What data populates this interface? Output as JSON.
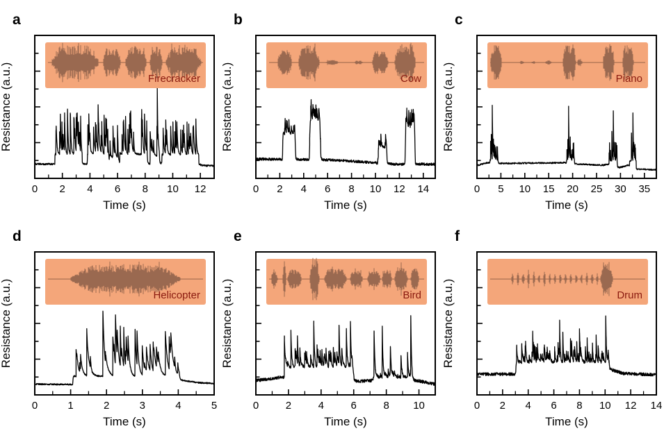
{
  "figure_title": "",
  "colors": {
    "background": "#ffffff",
    "trace": "#000000",
    "frame": "#000000",
    "text": "#000000",
    "inset_bg": "#f4a67a",
    "waveform": "#9a6950",
    "waveform_center": "#8a5a42",
    "sound_label": "#8a1a0f"
  },
  "chart_data": [
    {
      "type": "line",
      "panel_label": "a",
      "sound": "Firecracker",
      "xlabel": "Time (s)",
      "ylabel": "Resistance (a.u.)",
      "xlim": [
        0,
        13
      ],
      "xticks": [
        0,
        2,
        4,
        6,
        8,
        10,
        12
      ],
      "minor_step": 1,
      "noise": 0.006,
      "baseline_nodes": [
        [
          0,
          0.1
        ],
        [
          11.9,
          0.1
        ],
        [
          12.15,
          0.09
        ],
        [
          13,
          0.088
        ]
      ],
      "segments": [
        {
          "t0": 1.45,
          "t1": 3.45,
          "base": 0.17,
          "smin": 0.12,
          "smax": 0.32,
          "density": 11
        },
        {
          "t0": 3.8,
          "t1": 5.3,
          "base": 0.17,
          "smin": 0.12,
          "smax": 0.34,
          "density": 11
        },
        {
          "t0": 5.4,
          "t1": 6.05,
          "base": 0.15,
          "smin": 0.08,
          "smax": 0.22,
          "density": 8
        },
        {
          "t0": 6.15,
          "t1": 8.15,
          "base": 0.17,
          "smin": 0.12,
          "smax": 0.32,
          "density": 11
        },
        {
          "t0": 8.35,
          "t1": 9.05,
          "base": 0.16,
          "smin": 0.1,
          "smax": 0.26,
          "density": 9
        },
        {
          "t0": 9.2,
          "t1": 11.9,
          "base": 0.165,
          "smin": 0.1,
          "smax": 0.28,
          "density": 10
        }
      ],
      "events": [
        {
          "t": 8.88,
          "h": 0.47,
          "tau": 0.04
        },
        {
          "t": 2.9,
          "h": 0.18
        },
        {
          "t": 3.85,
          "h": 0.2
        },
        {
          "t": 6.85,
          "h": 0.2
        },
        {
          "t": 10.15,
          "h": 0.16
        }
      ],
      "audio_packets": [
        {
          "f0": 0.04,
          "f1": 0.33,
          "a": 0.9
        },
        {
          "f0": 0.36,
          "f1": 0.47,
          "a": 0.75
        },
        {
          "f0": 0.5,
          "f1": 0.63,
          "a": 0.85
        },
        {
          "f0": 0.65,
          "f1": 0.73,
          "a": 0.7
        },
        {
          "f0": 0.75,
          "f1": 0.97,
          "a": 0.8
        }
      ]
    },
    {
      "type": "line",
      "panel_label": "b",
      "sound": "Cow",
      "xlabel": "Time (s)",
      "ylabel": "Resistance (a.u.)",
      "xlim": [
        0,
        15
      ],
      "xticks": [
        0,
        2,
        4,
        6,
        8,
        10,
        12,
        14
      ],
      "minor_step": 1,
      "noise": 0.009,
      "baseline_nodes": [
        [
          0,
          0.135
        ],
        [
          6,
          0.13
        ],
        [
          7.2,
          0.125
        ],
        [
          9.8,
          0.11
        ],
        [
          11.3,
          0.1
        ],
        [
          12.2,
          0.098
        ],
        [
          13.6,
          0.1
        ],
        [
          15,
          0.098
        ]
      ],
      "segments": [
        {
          "t0": 2.2,
          "t1": 3.35,
          "base": 0.31,
          "smin": 0.02,
          "smax": 0.1,
          "density": 14,
          "edge": 0.12
        },
        {
          "t0": 4.45,
          "t1": 5.45,
          "base": 0.4,
          "smin": 0.03,
          "smax": 0.13,
          "density": 14,
          "edge": 0.12
        },
        {
          "t0": 10.2,
          "t1": 11.0,
          "base": 0.22,
          "smin": 0.02,
          "smax": 0.09,
          "density": 12,
          "edge": 0.1
        },
        {
          "t0": 12.45,
          "t1": 13.35,
          "base": 0.36,
          "smin": 0.03,
          "smax": 0.12,
          "density": 12,
          "edge": 0.1
        }
      ],
      "events": [
        {
          "t": 2.45,
          "h": 0.1
        },
        {
          "t": 2.6,
          "h": 0.07
        },
        {
          "t": 4.62,
          "h": 0.15
        },
        {
          "t": 4.8,
          "h": 0.1
        },
        {
          "t": 5.25,
          "h": 0.08
        },
        {
          "t": 10.45,
          "h": 0.09
        },
        {
          "t": 12.62,
          "h": 0.13
        },
        {
          "t": 13.1,
          "h": 0.1
        }
      ],
      "audio_packets": [
        {
          "f0": 0.07,
          "f1": 0.16,
          "a": 0.65
        },
        {
          "f0": 0.2,
          "f1": 0.33,
          "a": 0.9
        },
        {
          "f0": 0.37,
          "f1": 0.45,
          "a": 0.12
        },
        {
          "f0": 0.55,
          "f1": 0.6,
          "a": 0.1
        },
        {
          "f0": 0.66,
          "f1": 0.76,
          "a": 0.6
        },
        {
          "f0": 0.8,
          "f1": 0.93,
          "a": 0.95
        }
      ]
    },
    {
      "type": "line",
      "panel_label": "c",
      "sound": "Piano",
      "xlabel": "Time (s)",
      "ylabel": "Resistance (a.u.)",
      "xlim": [
        0,
        37.5
      ],
      "xticks": [
        0,
        5,
        10,
        15,
        20,
        25,
        30,
        35
      ],
      "minor_step": 2.5,
      "noise": 0.005,
      "baseline_nodes": [
        [
          0,
          0.09
        ],
        [
          2.3,
          0.11
        ],
        [
          5.5,
          0.105
        ],
        [
          15,
          0.108
        ],
        [
          18.4,
          0.11
        ],
        [
          21,
          0.1
        ],
        [
          26.5,
          0.092
        ],
        [
          27.4,
          0.1
        ],
        [
          29.8,
          0.075
        ],
        [
          31.6,
          0.092
        ],
        [
          33.5,
          0.065
        ],
        [
          37.5,
          0.06
        ]
      ],
      "segments": [
        {
          "t0": 2.7,
          "t1": 4.3,
          "base": 0.13,
          "smin": 0.03,
          "smax": 0.14,
          "density": 7
        },
        {
          "t0": 18.7,
          "t1": 20.4,
          "base": 0.13,
          "smin": 0.03,
          "smax": 0.14,
          "density": 7
        },
        {
          "t0": 27.6,
          "t1": 29.3,
          "base": 0.125,
          "smin": 0.03,
          "smax": 0.14,
          "density": 7
        },
        {
          "t0": 31.9,
          "t1": 33.3,
          "base": 0.12,
          "smin": 0.03,
          "smax": 0.13,
          "density": 7
        }
      ],
      "events": [
        {
          "t": 3.2,
          "h": 0.38,
          "tau": 0.1
        },
        {
          "t": 3.0,
          "h": 0.18
        },
        {
          "t": 3.45,
          "h": 0.14
        },
        {
          "t": 19.15,
          "h": 0.37,
          "tau": 0.1
        },
        {
          "t": 19.0,
          "h": 0.14
        },
        {
          "t": 19.5,
          "h": 0.16
        },
        {
          "t": 28.2,
          "h": 0.2,
          "tau": 0.09
        },
        {
          "t": 28.5,
          "h": 0.35,
          "tau": 0.09
        },
        {
          "t": 28.75,
          "h": 0.13
        },
        {
          "t": 32.3,
          "h": 0.2,
          "tau": 0.09
        },
        {
          "t": 32.6,
          "h": 0.34,
          "tau": 0.09
        },
        {
          "t": 32.9,
          "h": 0.11
        }
      ],
      "audio_packets": [
        {
          "f0": 0.02,
          "f1": 0.09,
          "a": 0.95
        },
        {
          "f0": 0.2,
          "f1": 0.23,
          "a": 0.1
        },
        {
          "f0": 0.27,
          "f1": 0.3,
          "a": 0.08
        },
        {
          "f0": 0.36,
          "f1": 0.4,
          "a": 0.12
        },
        {
          "f0": 0.47,
          "f1": 0.55,
          "a": 0.95
        },
        {
          "f0": 0.56,
          "f1": 0.59,
          "a": 0.25
        },
        {
          "f0": 0.72,
          "f1": 0.79,
          "a": 0.95
        },
        {
          "f0": 0.84,
          "f1": 0.91,
          "a": 0.9
        }
      ]
    },
    {
      "type": "line",
      "panel_label": "d",
      "sound": "Helicopter",
      "xlabel": "Time (s)",
      "ylabel": "Resistance (a.u.)",
      "xlim": [
        0,
        5
      ],
      "xticks": [
        0,
        1,
        2,
        3,
        4,
        5
      ],
      "minor_step": 0.5,
      "noise": 0.005,
      "baseline_nodes": [
        [
          0,
          0.075
        ],
        [
          1.0,
          0.073
        ],
        [
          4.15,
          0.1
        ],
        [
          4.6,
          0.085
        ],
        [
          5,
          0.08
        ]
      ],
      "segments": [
        {
          "t0": 1.05,
          "t1": 4.05,
          "base": 0.13,
          "smin": 0.08,
          "smax": 0.36,
          "density": 14,
          "edge": 0.03
        }
      ],
      "events": [
        {
          "t": 1.45,
          "h": 0.33
        },
        {
          "t": 1.9,
          "h": 0.46
        },
        {
          "t": 2.25,
          "h": 0.43
        },
        {
          "t": 2.6,
          "h": 0.28
        },
        {
          "t": 2.85,
          "h": 0.32
        },
        {
          "t": 3.3,
          "h": 0.24
        },
        {
          "t": 3.65,
          "h": 0.27
        }
      ],
      "audio_packets": [
        {
          "f0": 0.16,
          "f1": 0.84,
          "a": 0.75
        }
      ]
    },
    {
      "type": "line",
      "panel_label": "e",
      "sound": "Bird",
      "xlabel": "Time (s)",
      "ylabel": "Resistance (a.u.)",
      "xlim": [
        0,
        11
      ],
      "xticks": [
        0,
        2,
        4,
        6,
        8,
        10
      ],
      "minor_step": 1,
      "noise": 0.011,
      "baseline_nodes": [
        [
          0,
          0.1
        ],
        [
          0.9,
          0.112
        ],
        [
          1.6,
          0.125
        ],
        [
          6.3,
          0.095
        ],
        [
          7.0,
          0.1
        ],
        [
          9.9,
          0.1
        ],
        [
          10.5,
          0.085
        ],
        [
          11,
          0.075
        ]
      ],
      "segments": [
        {
          "t0": 1.7,
          "t1": 6.05,
          "base": 0.195,
          "smin": 0.02,
          "smax": 0.13,
          "density": 9,
          "edge": 0.15
        },
        {
          "t0": 7.15,
          "t1": 9.6,
          "base": 0.125,
          "smin": 0.01,
          "smax": 0.06,
          "density": 6,
          "edge": 0.1
        }
      ],
      "events": [
        {
          "t": 1.75,
          "h": 0.27
        },
        {
          "t": 2.15,
          "h": 0.25
        },
        {
          "t": 2.55,
          "h": 0.21
        },
        {
          "t": 2.7,
          "h": 0.13
        },
        {
          "t": 3.55,
          "h": 0.33
        },
        {
          "t": 3.75,
          "h": 0.16
        },
        {
          "t": 4.05,
          "h": 0.12
        },
        {
          "t": 4.3,
          "h": 0.13
        },
        {
          "t": 4.55,
          "h": 0.12
        },
        {
          "t": 4.75,
          "h": 0.14
        },
        {
          "t": 5.1,
          "h": 0.3
        },
        {
          "t": 5.55,
          "h": 0.26
        },
        {
          "t": 5.8,
          "h": 0.32
        },
        {
          "t": 7.25,
          "h": 0.33
        },
        {
          "t": 7.75,
          "h": 0.35
        },
        {
          "t": 8.25,
          "h": 0.22
        },
        {
          "t": 8.9,
          "h": 0.15
        },
        {
          "t": 9.3,
          "h": 0.17
        },
        {
          "t": 9.5,
          "h": 0.43
        }
      ],
      "audio_packets": [
        {
          "f0": 0.03,
          "f1": 0.07,
          "a": 0.4
        },
        {
          "f0": 0.1,
          "f1": 0.125,
          "a": 1.0
        },
        {
          "f0": 0.13,
          "f1": 0.22,
          "a": 0.5
        },
        {
          "f0": 0.27,
          "f1": 0.33,
          "a": 0.95
        },
        {
          "f0": 0.36,
          "f1": 0.5,
          "a": 0.55
        },
        {
          "f0": 0.52,
          "f1": 0.6,
          "a": 0.45
        },
        {
          "f0": 0.63,
          "f1": 0.71,
          "a": 0.5
        },
        {
          "f0": 0.72,
          "f1": 0.78,
          "a": 0.55
        },
        {
          "f0": 0.8,
          "f1": 0.88,
          "a": 0.7
        },
        {
          "f0": 0.9,
          "f1": 0.95,
          "a": 0.6
        }
      ]
    },
    {
      "type": "line",
      "panel_label": "f",
      "sound": "Drum",
      "xlabel": "Time (s)",
      "ylabel": "Resistance (a.u.)",
      "xlim": [
        0,
        14
      ],
      "xticks": [
        0,
        2,
        4,
        6,
        8,
        10,
        12,
        14
      ],
      "minor_step": 1,
      "noise": 0.011,
      "baseline_nodes": [
        [
          0,
          0.145
        ],
        [
          2.9,
          0.145
        ],
        [
          10.55,
          0.175
        ],
        [
          11.4,
          0.15
        ],
        [
          14,
          0.14
        ]
      ],
      "segments": [
        {
          "t0": 3.0,
          "t1": 10.35,
          "base": 0.23,
          "smin": 0.02,
          "smax": 0.15,
          "density": 11,
          "edge": 0.08
        }
      ],
      "events": [
        {
          "t": 3.1,
          "h": 0.12
        },
        {
          "t": 4.35,
          "h": 0.21
        },
        {
          "t": 6.45,
          "h": 0.3
        },
        {
          "t": 6.7,
          "h": 0.22
        },
        {
          "t": 7.3,
          "h": 0.16
        },
        {
          "t": 8.0,
          "h": 0.24
        },
        {
          "t": 8.6,
          "h": 0.16
        },
        {
          "t": 9.3,
          "h": 0.18
        },
        {
          "t": 10.05,
          "h": 0.33
        }
      ],
      "audio_packets": [
        {
          "f0": 0.15,
          "f1": 0.71,
          "a": 0.75,
          "period": 0.033,
          "duty": 0.014
        },
        {
          "f0": 0.705,
          "f1": 0.78,
          "a": 0.95
        }
      ]
    }
  ]
}
